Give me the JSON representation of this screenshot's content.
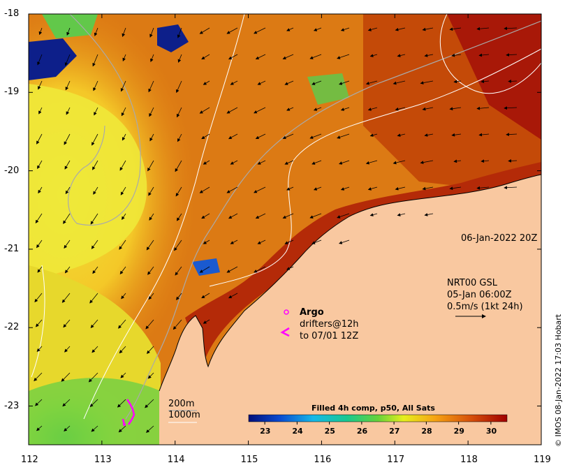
{
  "map": {
    "lon_ticks": [
      "112",
      "113",
      "114",
      "115",
      "116",
      "117",
      "118",
      "119"
    ],
    "lat_ticks": [
      "-18",
      "-19",
      "-20",
      "-21",
      "-22",
      "-23"
    ],
    "lon_range": [
      112,
      119
    ],
    "lat_range": [
      -23.5,
      -18
    ],
    "date_label": "06-Jan-2022 20Z",
    "vector_info": {
      "line1": "NRT00 GSL",
      "line2": "05-Jan 06:00Z",
      "line3": "0.5m/s (1kt 24h)"
    },
    "argo": {
      "title": "Argo",
      "line1": "drifters@12h",
      "line2": "to 07/01 12Z",
      "color": "#ff00ff"
    },
    "depth_contours": {
      "line1": "200m",
      "line2": "1000m"
    },
    "colorbar": {
      "title": "Filled 4h comp, p50, All Sats",
      "ticks": [
        "23",
        "24",
        "25",
        "26",
        "27",
        "28",
        "29",
        "30"
      ],
      "range": [
        22.5,
        30.5
      ]
    },
    "credit": "© IMOS 08-Jan-2022 17:03 Hobart",
    "colors": {
      "land": "#f9c8a0",
      "warm": "#b80000",
      "cool": "#00167a"
    }
  }
}
